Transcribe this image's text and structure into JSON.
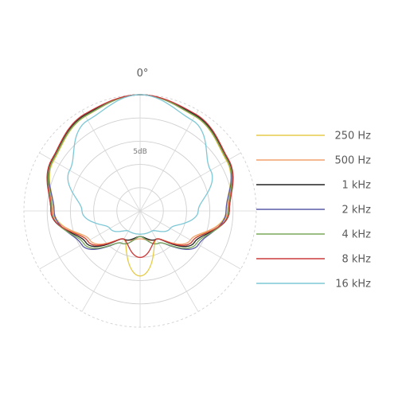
{
  "chart_data": {
    "type": "polar",
    "title": "",
    "angle_label": "0°",
    "ring_label": "5dB",
    "grid": true,
    "legend_position": "right",
    "angles_deg": [
      0,
      30,
      60,
      90,
      120,
      150,
      180
    ],
    "series": [
      {
        "name": "250 Hz",
        "color": "#e6cc4a",
        "values_db": [
          0,
          -1.5,
          -3.5,
          -6.5,
          -12,
          -18,
          -11
        ]
      },
      {
        "name": "500 Hz",
        "color": "#f2a06b",
        "values_db": [
          0,
          -1.2,
          -3.2,
          -6.2,
          -12.5,
          -18,
          -19
        ]
      },
      {
        "name": "1 kHz",
        "color": "#222222",
        "values_db": [
          0,
          -1.2,
          -3.2,
          -5.8,
          -11.5,
          -18,
          -19.5
        ]
      },
      {
        "name": "2 kHz",
        "color": "#5a5aa8",
        "values_db": [
          0,
          -1.4,
          -3.3,
          -6.5,
          -10.5,
          -17,
          -19.5
        ]
      },
      {
        "name": "4 kHz",
        "color": "#7aa85a",
        "values_db": [
          0,
          -1.4,
          -3.3,
          -6.0,
          -11.0,
          -17,
          -19.5
        ]
      },
      {
        "name": "8 kHz",
        "color": "#cc3a3a",
        "values_db": [
          0,
          -1.0,
          -3.0,
          -5.8,
          -12.0,
          -18,
          -15
        ]
      },
      {
        "name": "16 kHz",
        "color": "#7ec8d6",
        "values_db": [
          0,
          -2.5,
          -7.5,
          -12.5,
          -17.5,
          -20,
          -20
        ]
      }
    ]
  }
}
